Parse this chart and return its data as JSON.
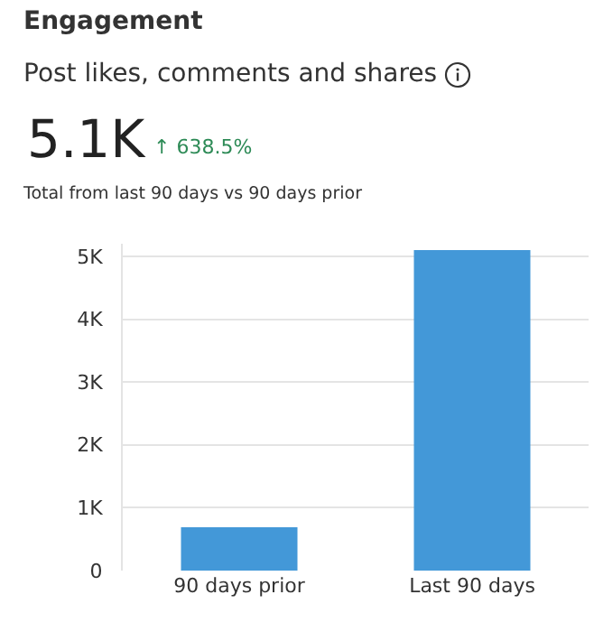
{
  "chart_data": {
    "type": "bar",
    "title": "Engagement",
    "subtitle": "Post likes, comments and shares",
    "annotations": [
      "5.1K",
      "↑ 638.5%",
      "Total from last 90 days vs 90 days prior"
    ],
    "categories": [
      "90 days prior",
      "Last 90 days"
    ],
    "values": [
      690,
      5100
    ],
    "color": "#4398d8",
    "ylim": [
      0,
      5200
    ],
    "yticks": [
      0,
      {
        "value": 1000,
        "label": "1K"
      },
      {
        "value": 2000,
        "label": "2K"
      },
      {
        "value": 3000,
        "label": "3K"
      },
      {
        "value": 4000,
        "label": "4K"
      },
      {
        "value": 5000,
        "label": "5K"
      }
    ],
    "grid": "y",
    "legend": false
  }
}
